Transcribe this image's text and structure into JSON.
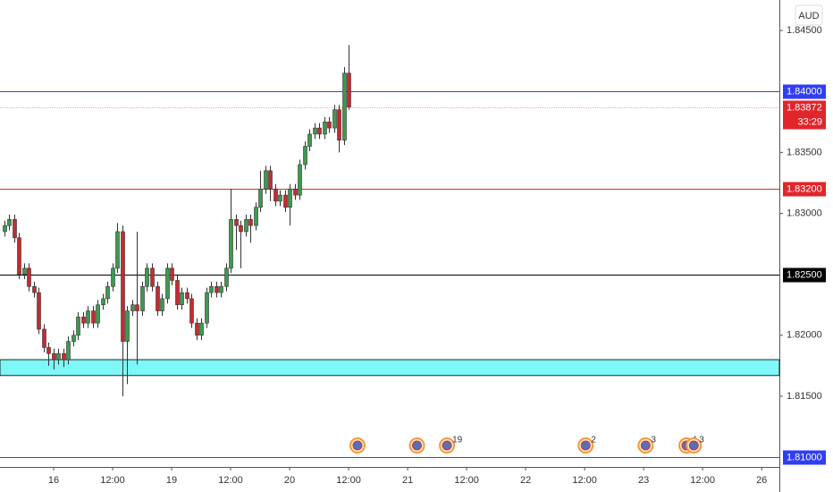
{
  "chart_data": {
    "type": "candlestick",
    "currency": "AUD",
    "x": [
      -10,
      -9,
      -8,
      -7,
      -6,
      -5,
      -4,
      -3,
      -2,
      -1,
      0,
      1,
      2,
      3,
      4,
      5,
      6,
      7,
      8,
      9,
      10,
      11,
      12,
      13,
      14,
      15,
      16,
      17,
      18,
      19,
      20,
      21,
      22,
      23,
      24,
      25,
      26,
      27,
      28,
      29,
      30,
      31,
      32,
      33,
      34,
      35,
      36,
      37,
      38,
      39,
      40,
      41,
      42,
      43,
      44,
      45,
      46,
      47,
      48,
      49,
      50,
      51,
      52,
      53,
      54,
      55,
      56,
      57,
      58,
      59,
      60
    ],
    "open": [
      1.8285,
      1.829,
      1.8295,
      1.828,
      1.825,
      1.8255,
      1.824,
      1.8235,
      1.8205,
      1.819,
      1.8185,
      1.818,
      1.8185,
      1.818,
      1.8195,
      1.82,
      1.8215,
      1.821,
      1.822,
      1.821,
      1.8225,
      1.823,
      1.824,
      1.8255,
      1.8285,
      1.8195,
      1.822,
      1.8225,
      1.822,
      1.824,
      1.8255,
      1.824,
      1.822,
      1.823,
      1.8255,
      1.8245,
      1.8225,
      1.8235,
      1.823,
      1.821,
      1.82,
      1.821,
      1.8235,
      1.824,
      1.8235,
      1.824,
      1.8255,
      1.8295,
      1.829,
      1.8285,
      1.8295,
      1.829,
      1.8305,
      1.832,
      1.8335,
      1.832,
      1.831,
      1.8315,
      1.8305,
      1.832,
      1.8315,
      1.834,
      1.8355,
      1.8365,
      1.837,
      1.8365,
      1.8375,
      1.837,
      1.8385,
      1.836,
      1.8415
    ],
    "high": [
      1.8294,
      1.8299,
      1.8299,
      1.8284,
      1.8259,
      1.8259,
      1.8244,
      1.8239,
      1.8209,
      1.8194,
      1.8189,
      1.8189,
      1.8189,
      1.8199,
      1.8204,
      1.8219,
      1.8219,
      1.8224,
      1.8224,
      1.8229,
      1.8234,
      1.8244,
      1.8259,
      1.8292,
      1.829,
      1.8224,
      1.8229,
      1.8285,
      1.8244,
      1.8259,
      1.8259,
      1.8244,
      1.8234,
      1.8259,
      1.8259,
      1.8249,
      1.8239,
      1.8239,
      1.8234,
      1.8214,
      1.8214,
      1.8239,
      1.8244,
      1.8244,
      1.8244,
      1.8259,
      1.832,
      1.8299,
      1.8294,
      1.8299,
      1.8299,
      1.8309,
      1.8335,
      1.8339,
      1.8339,
      1.8324,
      1.8319,
      1.8319,
      1.8324,
      1.8324,
      1.8344,
      1.8359,
      1.8369,
      1.8374,
      1.8374,
      1.8379,
      1.8379,
      1.8389,
      1.8389,
      1.842,
      1.8438
    ],
    "low": [
      1.8281,
      1.8286,
      1.8276,
      1.8246,
      1.8246,
      1.8236,
      1.8231,
      1.8201,
      1.8186,
      1.8175,
      1.8172,
      1.8176,
      1.8174,
      1.8176,
      1.8191,
      1.8196,
      1.8206,
      1.8206,
      1.8206,
      1.8206,
      1.8221,
      1.8226,
      1.8236,
      1.8251,
      1.815,
      1.816,
      1.8216,
      1.8176,
      1.8216,
      1.8236,
      1.8236,
      1.8216,
      1.8216,
      1.8226,
      1.8241,
      1.8221,
      1.8221,
      1.8226,
      1.8206,
      1.8196,
      1.8196,
      1.8206,
      1.8231,
      1.8231,
      1.8231,
      1.8236,
      1.8251,
      1.827,
      1.8255,
      1.8281,
      1.8276,
      1.8286,
      1.8301,
      1.8316,
      1.831,
      1.8306,
      1.8306,
      1.8301,
      1.829,
      1.8311,
      1.8311,
      1.8336,
      1.8351,
      1.8361,
      1.8361,
      1.8361,
      1.8366,
      1.8366,
      1.835,
      1.8356,
      1.8385
    ],
    "close": [
      1.829,
      1.8295,
      1.828,
      1.825,
      1.8255,
      1.824,
      1.8235,
      1.8205,
      1.819,
      1.8185,
      1.818,
      1.8185,
      1.818,
      1.8195,
      1.82,
      1.8215,
      1.821,
      1.822,
      1.821,
      1.8225,
      1.823,
      1.824,
      1.8255,
      1.8285,
      1.8195,
      1.822,
      1.8225,
      1.822,
      1.824,
      1.8255,
      1.824,
      1.822,
      1.823,
      1.8255,
      1.8245,
      1.8225,
      1.8235,
      1.823,
      1.821,
      1.82,
      1.821,
      1.8235,
      1.824,
      1.8235,
      1.824,
      1.8255,
      1.8295,
      1.829,
      1.8285,
      1.8295,
      1.829,
      1.8305,
      1.832,
      1.8335,
      1.832,
      1.831,
      1.8315,
      1.8305,
      1.832,
      1.8315,
      1.834,
      1.8355,
      1.8365,
      1.837,
      1.8365,
      1.8375,
      1.837,
      1.8385,
      1.836,
      1.8415,
      1.83872
    ],
    "up_color": "#3d9a4f",
    "down_color": "#c62a2f",
    "xlim": [
      -10.9,
      147.6
    ],
    "xticks": [
      {
        "value": 0,
        "label": "16"
      },
      {
        "value": 12,
        "label": "12:00"
      },
      {
        "value": 24,
        "label": "19"
      },
      {
        "value": 36,
        "label": "12:00"
      },
      {
        "value": 48,
        "label": "20"
      },
      {
        "value": 60,
        "label": "12:00"
      },
      {
        "value": 72,
        "label": "21"
      },
      {
        "value": 84,
        "label": "12:00"
      },
      {
        "value": 96,
        "label": "22"
      },
      {
        "value": 108,
        "label": "12:00"
      },
      {
        "value": 120,
        "label": "23"
      },
      {
        "value": 132,
        "label": "12:00"
      },
      {
        "value": 144,
        "label": "26"
      }
    ],
    "ylim": [
      1.8092,
      1.8475
    ],
    "yticks": [
      {
        "value": 1.845,
        "label": "1.84500"
      },
      {
        "value": 1.835,
        "label": "1.83500"
      },
      {
        "value": 1.83,
        "label": "1.83000"
      },
      {
        "value": 1.82,
        "label": "1.82000"
      },
      {
        "value": 1.815,
        "label": "1.81500"
      }
    ],
    "levels": [
      {
        "value": 1.84,
        "label": "1.84000",
        "color": "#2f3ff0"
      },
      {
        "value": 1.832,
        "label": "1.83200",
        "color": "#e0262b"
      },
      {
        "value": 1.825,
        "label": "1.82500",
        "color": "#000000"
      },
      {
        "value": 1.81,
        "label": "1.81000",
        "color": "#2f3ff0"
      }
    ],
    "last_price": 1.83872,
    "last_color": "#e0262b",
    "countdown": "33:29",
    "zone": {
      "top": 1.818,
      "bottom": 1.8167,
      "color": "#7df7f7"
    },
    "events": [
      {
        "x": 61.8
      },
      {
        "x": 73.9
      },
      {
        "x": 80,
        "count": "19"
      },
      {
        "x": 108.2,
        "count": "2"
      },
      {
        "x": 120.4,
        "count": "3"
      },
      {
        "x": 128.7,
        "count": "4"
      },
      {
        "x": 130.2,
        "count": "3"
      }
    ]
  }
}
